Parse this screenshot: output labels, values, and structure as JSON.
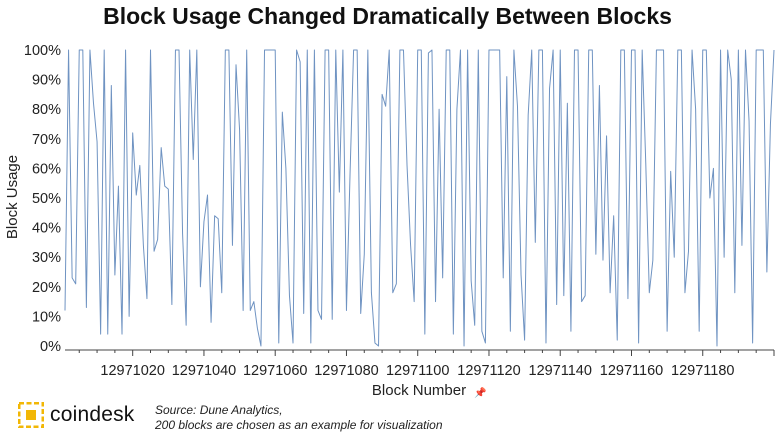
{
  "header": {
    "title": "Block Usage Changed Dramatically Between Blocks"
  },
  "footer": {
    "brand": "coindesk",
    "source_line1": "Source: Dune Analytics,",
    "source_line2": "200 blocks are chosen as an example for visualization"
  },
  "colors": {
    "line": "#6f93c2",
    "axis": "#444444",
    "logo_yellow": "#f2b705",
    "text": "#222222"
  },
  "chart_data": {
    "type": "line",
    "title": "Block Usage Changed Dramatically Between Blocks",
    "xlabel": "Block Number",
    "ylabel": "Block Usage",
    "xlim": [
      12971001,
      12971200
    ],
    "ylim": [
      0,
      100
    ],
    "x_ticks": [
      12971020,
      12971040,
      12971060,
      12971080,
      12971100,
      12971120,
      12971140,
      12971160,
      12971180
    ],
    "y_ticks": [
      "0%",
      "10%",
      "20%",
      "30%",
      "40%",
      "50%",
      "60%",
      "70%",
      "80%",
      "90%",
      "100%"
    ],
    "grid": false,
    "series": [
      {
        "name": "",
        "x_start": 12971001,
        "values": [
          12,
          100,
          23,
          21,
          100,
          100,
          13,
          100,
          82,
          69,
          4,
          100,
          4,
          88,
          24,
          54,
          4,
          100,
          10,
          72,
          51,
          61,
          34,
          16,
          100,
          32,
          36,
          67,
          54,
          53,
          14,
          100,
          100,
          38,
          7,
          100,
          63,
          100,
          20,
          42,
          51,
          8,
          44,
          43,
          18,
          100,
          100,
          34,
          95,
          73,
          12,
          100,
          12,
          15,
          6,
          0,
          100,
          100,
          100,
          100,
          1,
          79,
          60,
          17,
          1,
          100,
          96,
          11,
          100,
          1,
          100,
          12,
          9,
          100,
          100,
          9,
          100,
          52,
          100,
          12,
          58,
          100,
          100,
          11,
          31,
          100,
          18,
          1,
          0,
          85,
          81,
          100,
          18,
          21,
          100,
          100,
          61,
          34,
          15,
          100,
          100,
          4,
          99,
          100,
          15,
          80,
          23,
          100,
          100,
          4,
          80,
          100,
          0,
          100,
          22,
          7,
          100,
          5,
          1,
          100,
          100,
          100,
          100,
          23,
          91,
          5,
          100,
          81,
          24,
          2,
          78,
          100,
          35,
          100,
          100,
          1,
          87,
          100,
          14,
          100,
          17,
          82,
          5,
          100,
          100,
          15,
          17,
          100,
          100,
          31,
          88,
          29,
          71,
          18,
          44,
          2,
          100,
          100,
          16,
          100,
          100,
          1,
          100,
          62,
          18,
          29,
          100,
          100,
          100,
          5,
          59,
          30,
          100,
          100,
          18,
          32,
          100,
          80,
          5,
          100,
          100,
          50,
          60,
          0,
          100,
          30,
          100,
          90,
          18,
          100,
          34,
          100,
          76,
          1,
          100,
          100,
          100,
          25,
          75,
          100
        ]
      }
    ]
  }
}
